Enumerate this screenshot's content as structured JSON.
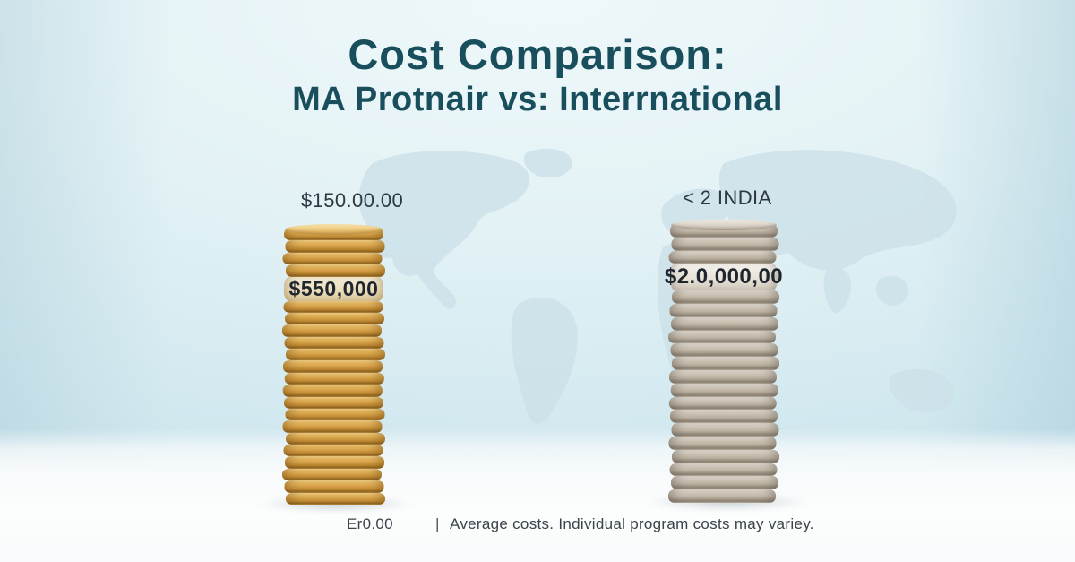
{
  "chart_data": {
    "type": "bar",
    "title": "Cost Comparison:",
    "subtitle": "MA Protnair vs: Interrnational",
    "series": [
      {
        "name": "domestic-gold-coin-stack",
        "coin_style": "gold",
        "top_label": "$150.00.00",
        "stack_label": "$550,000",
        "coins_above_label": 4,
        "coins_below_label": 17
      },
      {
        "name": "international-silver-coin-stack",
        "coin_style": "silver",
        "top_label": "< 2 INDIA",
        "stack_label": "$2.0,000,00",
        "coins_above_label": 3,
        "coins_below_label": 16
      }
    ],
    "footnote": {
      "left": "Er0.00",
      "separator": "|",
      "right": "Average costs. Individual program costs may variey."
    },
    "background_motif": "faint world map",
    "grid": false,
    "legend_position": "none"
  },
  "colors": {
    "title_teal": "#194f5c",
    "label_dark": "#2c3842",
    "gold_coin": "#d9a44a",
    "silver_coin": "#bfb5a6",
    "wall_blue": "#d8ecf2",
    "floor_white": "#fbfdfd",
    "map_silhouette": "#cde1e9"
  }
}
